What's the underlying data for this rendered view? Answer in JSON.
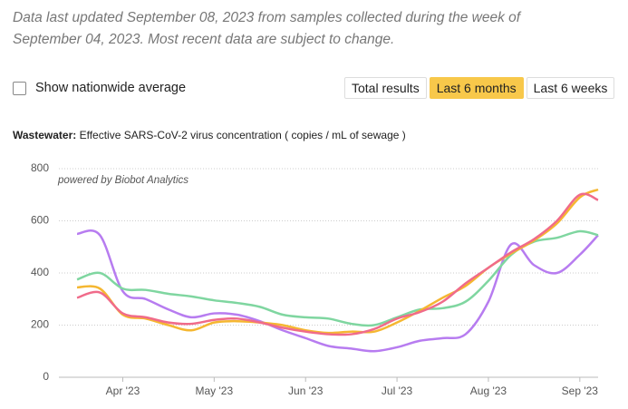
{
  "note": [
    "Data last updated September 08, 2023 from samples collected during the week of",
    "September 04, 2023. Most recent data are subject to change."
  ],
  "checkbox_label": "Show nationwide average",
  "buttons": [
    "Total results",
    "Last 6 months",
    "Last 6 weeks"
  ],
  "chart_data": {
    "type": "line",
    "title_prefix": "Wastewater:",
    "title": "Effective SARS-CoV-2 virus concentration  ( copies  /  mL of sewage )",
    "watermark": "powered by Biobot Analytics",
    "x": [
      0.5,
      0.75,
      1,
      1.25,
      1.5,
      1.75,
      2,
      2.25,
      2.5,
      2.75,
      3,
      3.25,
      3.5,
      3.75,
      4,
      4.25,
      4.5,
      4.75,
      5,
      5.25,
      5.5,
      5.75,
      6,
      6.2
    ],
    "xlim": [
      0.45,
      6.2
    ],
    "xticks": [
      {
        "value": 1,
        "label": "Apr '23"
      },
      {
        "value": 2,
        "label": "May '23"
      },
      {
        "value": 3,
        "label": "Jun '23"
      },
      {
        "value": 4,
        "label": "Jul '23"
      },
      {
        "value": 5,
        "label": "Aug '23"
      },
      {
        "value": 6,
        "label": "Sep '23"
      }
    ],
    "ylim": [
      0,
      800
    ],
    "yticks": [
      0,
      200,
      400,
      600,
      800
    ],
    "grid": true,
    "series": [
      {
        "color": "#b77cf0",
        "values": [
          550,
          545,
          330,
          300,
          260,
          230,
          245,
          240,
          215,
          180,
          150,
          120,
          110,
          100,
          115,
          140,
          150,
          165,
          290,
          510,
          430,
          400,
          470,
          545
        ]
      },
      {
        "color": "#7fd6a0",
        "values": [
          375,
          400,
          340,
          335,
          320,
          310,
          295,
          285,
          270,
          240,
          230,
          225,
          205,
          200,
          230,
          260,
          265,
          290,
          370,
          470,
          520,
          535,
          560,
          545
        ]
      },
      {
        "color": "#f5b731",
        "values": [
          345,
          340,
          240,
          225,
          200,
          180,
          210,
          215,
          210,
          200,
          180,
          170,
          175,
          175,
          210,
          255,
          305,
          350,
          420,
          475,
          525,
          590,
          690,
          720
        ]
      },
      {
        "color": "#f06b8a",
        "values": [
          305,
          325,
          245,
          230,
          210,
          205,
          220,
          225,
          210,
          190,
          175,
          165,
          165,
          185,
          225,
          250,
          290,
          360,
          420,
          480,
          530,
          600,
          700,
          680
        ]
      }
    ]
  }
}
